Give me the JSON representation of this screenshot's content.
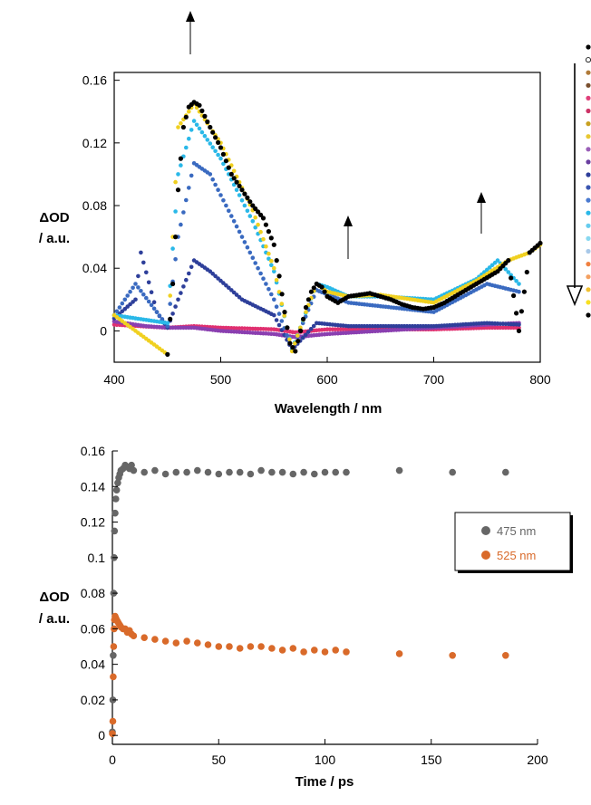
{
  "chart_data": [
    {
      "type": "scatter",
      "xlabel": "Wavelength / nm",
      "ylabel": "ΔOD",
      "ylabel_unit": "/ a.u.",
      "xlim": [
        400,
        800
      ],
      "ylim": [
        -0.02,
        0.165
      ],
      "xticks": [
        400,
        500,
        600,
        700,
        800
      ],
      "yticks": [
        0,
        0.04,
        0.08,
        0.12,
        0.16
      ],
      "ytick_labels": [
        "0",
        "0.04",
        "0.08",
        "0.12",
        "0.16"
      ],
      "grid": false,
      "arrows": [
        "up at 475 nm",
        "up at 620 nm",
        "up at 745 nm"
      ],
      "legend_time_arrow": "down",
      "legend_marker_colors": [
        "#000000",
        "#ffffff",
        "#b07a38",
        "#7a4f2e",
        "#e0407a",
        "#cc3366",
        "#c8a020",
        "#e8c832",
        "#9a5fb8",
        "#6a3fa0",
        "#2e3f9a",
        "#3a55b0",
        "#4a7ad0",
        "#2ab8e8",
        "#66ccee",
        "#88d8f0",
        "#a8c8e8",
        "#f08040",
        "#f4a060",
        "#f0c030",
        "#f8e020",
        "#000000"
      ],
      "series": [
        {
          "color": "#e03070",
          "x": [
            400,
            450,
            475,
            500,
            550,
            570,
            600,
            650,
            700,
            750,
            780
          ],
          "y": [
            0.004,
            0.002,
            0.003,
            0.002,
            0.001,
            -0.001,
            0.001,
            0.001,
            0.001,
            0.002,
            0.002
          ]
        },
        {
          "color": "#8a3fb0",
          "x": [
            400,
            430,
            450,
            475,
            500,
            550,
            570,
            600,
            650,
            700,
            750,
            780
          ],
          "y": [
            0.006,
            0.003,
            0.002,
            0.002,
            0.0,
            -0.002,
            -0.004,
            -0.002,
            0.0,
            0.002,
            0.004,
            0.005
          ]
        },
        {
          "color": "#2e3f9a",
          "x": [
            400,
            420,
            425,
            440,
            450,
            460,
            475,
            490,
            520,
            550,
            567,
            590,
            620,
            700,
            750,
            780
          ],
          "y": [
            0.008,
            0.02,
            0.05,
            0.012,
            0.002,
            0.02,
            0.045,
            0.038,
            0.02,
            0.01,
            -0.012,
            0.005,
            0.003,
            0.003,
            0.005,
            0.004
          ]
        },
        {
          "color": "#3a6ac0",
          "x": [
            400,
            420,
            450,
            460,
            475,
            490,
            520,
            550,
            567,
            590,
            620,
            700,
            750,
            780
          ],
          "y": [
            0.01,
            0.03,
            0.003,
            0.06,
            0.107,
            0.1,
            0.06,
            0.02,
            -0.012,
            0.026,
            0.018,
            0.012,
            0.03,
            0.025
          ]
        },
        {
          "color": "#2ab8e8",
          "x": [
            400,
            450,
            460,
            475,
            500,
            530,
            550,
            567,
            590,
            600,
            620,
            650,
            700,
            740,
            760,
            780
          ],
          "y": [
            0.01,
            0.005,
            0.1,
            0.134,
            0.11,
            0.07,
            0.038,
            -0.012,
            0.03,
            0.028,
            0.022,
            0.022,
            0.02,
            0.033,
            0.045,
            0.03
          ]
        },
        {
          "color": "#f0d020",
          "x": [
            400,
            450,
            455,
            460,
            475,
            500,
            530,
            550,
            567,
            580,
            590,
            600,
            620,
            650,
            700,
            740,
            770,
            790,
            800
          ],
          "y": [
            0.01,
            -0.015,
            0.06,
            0.13,
            0.145,
            0.12,
            0.077,
            0.04,
            -0.013,
            0.012,
            0.03,
            0.025,
            0.022,
            0.023,
            0.018,
            0.032,
            0.045,
            0.05,
            0.055
          ]
        },
        {
          "color": "#000000",
          "x": [
            450,
            455,
            460,
            465,
            470,
            475,
            480,
            490,
            500,
            510,
            520,
            530,
            540,
            550,
            555,
            560,
            565,
            570,
            575,
            580,
            585,
            590,
            595,
            600,
            610,
            620,
            630,
            640,
            650,
            660,
            670,
            680,
            690,
            700,
            710,
            720,
            730,
            740,
            750,
            760,
            770,
            780,
            790,
            800
          ],
          "y": [
            -0.015,
            0.03,
            0.09,
            0.13,
            0.143,
            0.146,
            0.144,
            0.13,
            0.117,
            0.1,
            0.09,
            0.08,
            0.072,
            0.055,
            0.035,
            0.012,
            -0.008,
            -0.013,
            0.0,
            0.015,
            0.025,
            0.03,
            0.028,
            0.022,
            0.018,
            0.022,
            0.023,
            0.024,
            0.022,
            0.02,
            0.017,
            0.015,
            0.014,
            0.015,
            0.018,
            0.022,
            0.026,
            0.03,
            0.034,
            0.038,
            0.045,
            0.0,
            0.05,
            0.056
          ]
        }
      ]
    },
    {
      "type": "scatter",
      "xlabel": "Time / ps",
      "ylabel": "ΔOD",
      "ylabel_unit": "/ a.u.",
      "xlim": [
        0,
        200
      ],
      "ylim": [
        -0.005,
        0.16
      ],
      "xticks": [
        0,
        50,
        100,
        150,
        200
      ],
      "yticks": [
        0,
        0.02,
        0.04,
        0.06,
        0.08,
        0.1,
        0.12,
        0.14,
        0.16
      ],
      "ytick_labels": [
        "0",
        "0.02",
        "0.04",
        "0.06",
        "0.08",
        "0.1",
        "0.12",
        "0.14",
        "0.16"
      ],
      "grid": false,
      "legend_position": "right",
      "series": [
        {
          "name": "475 nm",
          "color": "#666666",
          "x": [
            0,
            0.2,
            0.4,
            0.6,
            0.8,
            1,
            1.3,
            1.6,
            2,
            2.5,
            3,
            3.5,
            4,
            5,
            6,
            7,
            8,
            9,
            10,
            15,
            20,
            25,
            30,
            35,
            40,
            45,
            50,
            55,
            60,
            65,
            70,
            75,
            80,
            85,
            90,
            95,
            100,
            105,
            110,
            135,
            160,
            185
          ],
          "y": [
            0.002,
            0.02,
            0.045,
            0.08,
            0.1,
            0.115,
            0.125,
            0.133,
            0.138,
            0.142,
            0.145,
            0.147,
            0.149,
            0.15,
            0.152,
            0.151,
            0.15,
            0.152,
            0.149,
            0.148,
            0.149,
            0.147,
            0.148,
            0.148,
            0.149,
            0.148,
            0.147,
            0.148,
            0.148,
            0.147,
            0.149,
            0.148,
            0.148,
            0.147,
            0.148,
            0.147,
            0.148,
            0.148,
            0.148,
            0.149,
            0.148,
            0.148
          ]
        },
        {
          "name": "525 nm",
          "color": "#d96a2a",
          "x": [
            0,
            0.2,
            0.4,
            0.6,
            0.8,
            1,
            1.3,
            1.6,
            2,
            2.5,
            3,
            3.5,
            4,
            5,
            6,
            7,
            8,
            9,
            10,
            15,
            20,
            25,
            30,
            35,
            40,
            45,
            50,
            55,
            60,
            65,
            70,
            75,
            80,
            85,
            90,
            95,
            100,
            105,
            110,
            135,
            160,
            185
          ],
          "y": [
            0.001,
            0.008,
            0.033,
            0.05,
            0.06,
            0.065,
            0.067,
            0.066,
            0.065,
            0.064,
            0.063,
            0.062,
            0.061,
            0.06,
            0.06,
            0.058,
            0.059,
            0.057,
            0.056,
            0.055,
            0.054,
            0.053,
            0.052,
            0.053,
            0.052,
            0.051,
            0.05,
            0.05,
            0.049,
            0.05,
            0.05,
            0.049,
            0.048,
            0.049,
            0.047,
            0.048,
            0.047,
            0.048,
            0.047,
            0.046,
            0.045,
            0.045
          ]
        }
      ]
    }
  ]
}
